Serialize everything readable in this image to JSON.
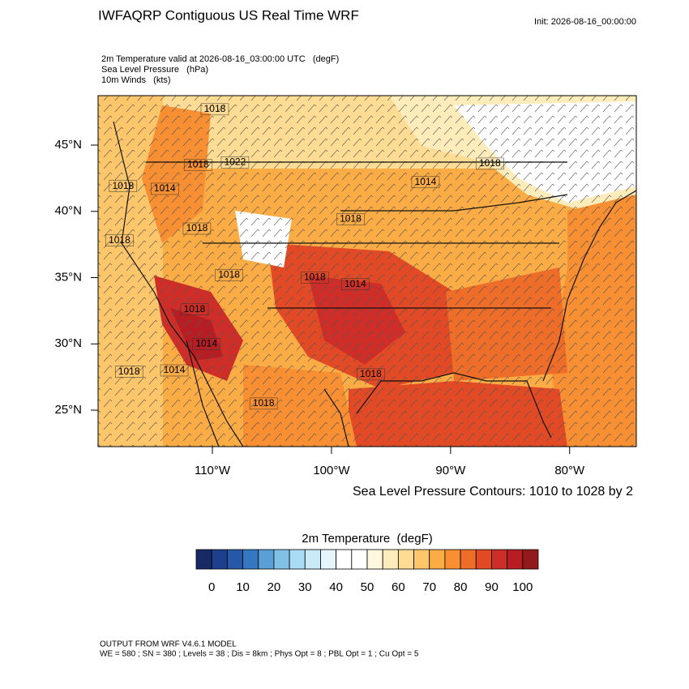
{
  "header": {
    "title": "IWFAQRP Contiguous US Real Time WRF",
    "init": "Init: 2026-08-16_00:00:00",
    "subtitles": [
      "2m Temperature valid at 2026-08-16_03:00:00 UTC   (degF)",
      "Sea Level Pressure   (hPa)",
      "10m Winds   (kts)"
    ]
  },
  "map": {
    "xlim": [
      -119.6,
      -74.4
    ],
    "ylim": [
      22.25,
      48.73
    ],
    "yticks": [
      {
        "value": 45,
        "label": "45°N"
      },
      {
        "value": 40,
        "label": "40°N"
      },
      {
        "value": 35,
        "label": "35°N"
      },
      {
        "value": 30,
        "label": "30°N"
      },
      {
        "value": 25,
        "label": "25°N"
      }
    ],
    "xticks": [
      {
        "value": -110,
        "label": "110°W"
      },
      {
        "value": -100,
        "label": "100°W"
      },
      {
        "value": -90,
        "label": "90°W"
      },
      {
        "value": -80,
        "label": "80°W"
      }
    ],
    "contour_note": "Sea Level Pressure Contours: 1010 to 1028 by 2",
    "contour_labels": [
      {
        "text": "1018",
        "lon": -109.8,
        "lat": 47.7
      },
      {
        "text": "1018",
        "lon": -111.2,
        "lat": 43.5
      },
      {
        "text": "1022",
        "lon": -108.1,
        "lat": 43.7
      },
      {
        "text": "1018",
        "lon": -117.5,
        "lat": 41.9
      },
      {
        "text": "1014",
        "lon": -114.0,
        "lat": 41.7
      },
      {
        "text": "1018",
        "lon": -117.8,
        "lat": 37.8
      },
      {
        "text": "1018",
        "lon": -111.3,
        "lat": 38.7
      },
      {
        "text": "1018",
        "lon": -98.4,
        "lat": 39.4
      },
      {
        "text": "1014",
        "lon": -92.1,
        "lat": 42.2
      },
      {
        "text": "1018",
        "lon": -86.7,
        "lat": 43.6
      },
      {
        "text": "1018",
        "lon": -101.4,
        "lat": 35.0
      },
      {
        "text": "1014",
        "lon": -98.0,
        "lat": 34.5
      },
      {
        "text": "1018",
        "lon": -108.6,
        "lat": 35.2
      },
      {
        "text": "1018",
        "lon": -111.5,
        "lat": 32.6
      },
      {
        "text": "1014",
        "lon": -110.5,
        "lat": 30.0
      },
      {
        "text": "1018",
        "lon": -117.0,
        "lat": 27.9
      },
      {
        "text": "1014",
        "lon": -113.2,
        "lat": 28.0
      },
      {
        "text": "1018",
        "lon": -96.7,
        "lat": 27.7
      },
      {
        "text": "1018",
        "lon": -105.7,
        "lat": 25.5
      }
    ]
  },
  "colorbar": {
    "title": "2m Temperature  (degF)",
    "range": [
      -5,
      105
    ],
    "ticks": [
      0,
      10,
      20,
      30,
      40,
      50,
      60,
      70,
      80,
      90,
      100
    ],
    "colors": [
      "#172a66",
      "#1d3f8c",
      "#2558a8",
      "#3577c0",
      "#5a9fd6",
      "#82c0e8",
      "#a9dbf5",
      "#c9eaf8",
      "#e6f5fb",
      "#ffffff",
      "#ffffff",
      "#fff8df",
      "#feecbb",
      "#fedc93",
      "#fdc66a",
      "#fcac45",
      "#f88f33",
      "#ee6d29",
      "#e24a26",
      "#cf2e28",
      "#b71d23",
      "#921a1c"
    ]
  },
  "footer": [
    "OUTPUT FROM WRF V4.6.1 MODEL",
    "WE = 580 ; SN = 380 ; Levels = 38 ; Dis = 8km ; Phys Opt = 8 ; PBL Opt = 1 ; Cu Opt = 5"
  ]
}
